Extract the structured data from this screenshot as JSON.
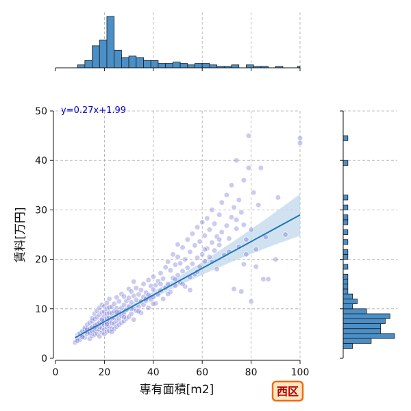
{
  "chart_data": {
    "type": "scatter",
    "title": "",
    "xlabel": "専有面積[m2]",
    "ylabel": "賃料[万円]",
    "xlim": [
      0,
      100
    ],
    "ylim": [
      0,
      50
    ],
    "xticks": [
      0,
      20,
      40,
      60,
      80,
      100
    ],
    "yticks": [
      0,
      10,
      20,
      30,
      40,
      50
    ],
    "grid": true,
    "regression": {
      "label": "y=0.27x+1.99",
      "slope": 0.27,
      "intercept": 1.99,
      "x_range": [
        8,
        100
      ]
    },
    "region_badge": "西区",
    "colors": {
      "points": "#6a6ad8",
      "line": "#1f77b4",
      "band": "#bcd4ea",
      "hist": "#4a8fc6",
      "equation": "#0000cc",
      "badge_border": "#f26a10",
      "badge_fill": "#fde7c2",
      "badge_text": "#b00000"
    },
    "points": [
      [
        8,
        3.2
      ],
      [
        9,
        4.1
      ],
      [
        10,
        3.8
      ],
      [
        10,
        5.0
      ],
      [
        11,
        4.6
      ],
      [
        11,
        5.5
      ],
      [
        12,
        4.2
      ],
      [
        12,
        5.8
      ],
      [
        12,
        6.2
      ],
      [
        13,
        4.9
      ],
      [
        13,
        5.3
      ],
      [
        13,
        6.8
      ],
      [
        14,
        3.9
      ],
      [
        14,
        5.1
      ],
      [
        14,
        6.0
      ],
      [
        14,
        7.2
      ],
      [
        15,
        4.5
      ],
      [
        15,
        5.4
      ],
      [
        15,
        6.3
      ],
      [
        15,
        7.5
      ],
      [
        15,
        8.1
      ],
      [
        16,
        4.8
      ],
      [
        16,
        5.6
      ],
      [
        16,
        6.6
      ],
      [
        16,
        7.9
      ],
      [
        16,
        9.0
      ],
      [
        17,
        5.0
      ],
      [
        17,
        5.9
      ],
      [
        17,
        6.9
      ],
      [
        17,
        8.3
      ],
      [
        17,
        9.6
      ],
      [
        18,
        4.4
      ],
      [
        18,
        5.7
      ],
      [
        18,
        6.4
      ],
      [
        18,
        7.3
      ],
      [
        18,
        8.8
      ],
      [
        18,
        10.2
      ],
      [
        19,
        5.2
      ],
      [
        19,
        6.1
      ],
      [
        19,
        7.0
      ],
      [
        19,
        8.0
      ],
      [
        19,
        9.3
      ],
      [
        19,
        10.8
      ],
      [
        20,
        4.9
      ],
      [
        20,
        5.8
      ],
      [
        20,
        6.7
      ],
      [
        20,
        7.6
      ],
      [
        20,
        8.5
      ],
      [
        20,
        9.4
      ],
      [
        20,
        10.5
      ],
      [
        21,
        5.4
      ],
      [
        21,
        6.3
      ],
      [
        21,
        7.2
      ],
      [
        21,
        8.1
      ],
      [
        21,
        9.0
      ],
      [
        21,
        10.0
      ],
      [
        21,
        11.2
      ],
      [
        22,
        5.6
      ],
      [
        22,
        6.5
      ],
      [
        22,
        7.4
      ],
      [
        22,
        8.3
      ],
      [
        22,
        9.2
      ],
      [
        22,
        10.3
      ],
      [
        22,
        12.0
      ],
      [
        23,
        6.0
      ],
      [
        23,
        7.1
      ],
      [
        23,
        8.0
      ],
      [
        23,
        9.1
      ],
      [
        23,
        10.4
      ],
      [
        24,
        5.9
      ],
      [
        24,
        7.0
      ],
      [
        24,
        8.2
      ],
      [
        24,
        9.5
      ],
      [
        24,
        11.0
      ],
      [
        25,
        6.4
      ],
      [
        25,
        7.5
      ],
      [
        25,
        8.7
      ],
      [
        25,
        10.1
      ],
      [
        25,
        12.3
      ],
      [
        26,
        6.8
      ],
      [
        26,
        8.0
      ],
      [
        26,
        9.3
      ],
      [
        26,
        11.5
      ],
      [
        27,
        7.2
      ],
      [
        27,
        8.6
      ],
      [
        27,
        10.2
      ],
      [
        27,
        13.0
      ],
      [
        28,
        7.5
      ],
      [
        28,
        9.0
      ],
      [
        28,
        10.8
      ],
      [
        28,
        12.5
      ],
      [
        29,
        8.0
      ],
      [
        29,
        9.8
      ],
      [
        29,
        11.6
      ],
      [
        30,
        8.4
      ],
      [
        30,
        10.5
      ],
      [
        30,
        12.2
      ],
      [
        30,
        14.0
      ],
      [
        31,
        9.0
      ],
      [
        31,
        11.3
      ],
      [
        31,
        13.5
      ],
      [
        32,
        7.8
      ],
      [
        32,
        10.0
      ],
      [
        32,
        12.6
      ],
      [
        32,
        15.5
      ],
      [
        33,
        9.6
      ],
      [
        33,
        11.8
      ],
      [
        33,
        14.2
      ],
      [
        34,
        10.4
      ],
      [
        34,
        12.9
      ],
      [
        35,
        9.2
      ],
      [
        35,
        11.5
      ],
      [
        35,
        13.8
      ],
      [
        36,
        10.8
      ],
      [
        36,
        12.4
      ],
      [
        36,
        15.0
      ],
      [
        37,
        11.6
      ],
      [
        37,
        13.3
      ],
      [
        38,
        10.2
      ],
      [
        38,
        12.8
      ],
      [
        38,
        15.8
      ],
      [
        39,
        11.9
      ],
      [
        39,
        14.6
      ],
      [
        40,
        12.4
      ],
      [
        40,
        13.9
      ],
      [
        40,
        16.5
      ],
      [
        41,
        11.1
      ],
      [
        41,
        14.8
      ],
      [
        42,
        12.9
      ],
      [
        42,
        15.6
      ],
      [
        43,
        13.7
      ],
      [
        43,
        17.2
      ],
      [
        44,
        12.0
      ],
      [
        44,
        16.1
      ],
      [
        45,
        14.3
      ],
      [
        45,
        18.4
      ],
      [
        46,
        15.0
      ],
      [
        46,
        19.5
      ],
      [
        47,
        13.4
      ],
      [
        47,
        17.8
      ],
      [
        48,
        16.2
      ],
      [
        48,
        21.0
      ],
      [
        49,
        14.7
      ],
      [
        49,
        18.9
      ],
      [
        50,
        16.8
      ],
      [
        50,
        20.5
      ],
      [
        50,
        23.0
      ],
      [
        51,
        15.3
      ],
      [
        51,
        19.2
      ],
      [
        52,
        17.6
      ],
      [
        52,
        22.4
      ],
      [
        53,
        14.5
      ],
      [
        53,
        20.0
      ],
      [
        54,
        18.3
      ],
      [
        54,
        24.0
      ],
      [
        55,
        16.4
      ],
      [
        55,
        21.5
      ],
      [
        56,
        19.1
      ],
      [
        56,
        25.2
      ],
      [
        57,
        17.0
      ],
      [
        57,
        22.8
      ],
      [
        58,
        20.3
      ],
      [
        58,
        26.5
      ],
      [
        59,
        18.5
      ],
      [
        59,
        23.6
      ],
      [
        60,
        21.0
      ],
      [
        60,
        27.5
      ],
      [
        61,
        19.6
      ],
      [
        61,
        24.8
      ],
      [
        62,
        22.2
      ],
      [
        62,
        28.3
      ],
      [
        63,
        20.5
      ],
      [
        63,
        26.0
      ],
      [
        64,
        23.4
      ],
      [
        64,
        30.0
      ],
      [
        65,
        21.8
      ],
      [
        65,
        27.2
      ],
      [
        66,
        18.0
      ],
      [
        66,
        24.6
      ],
      [
        67,
        22.9
      ],
      [
        67,
        29.0
      ],
      [
        68,
        25.5
      ],
      [
        68,
        31.5
      ],
      [
        69,
        20.9
      ],
      [
        70,
        26.8
      ],
      [
        70,
        33.0
      ],
      [
        71,
        24.2
      ],
      [
        72,
        28.5
      ],
      [
        72,
        35.0
      ],
      [
        73,
        14.0
      ],
      [
        73,
        30.5
      ],
      [
        74,
        26.2
      ],
      [
        74,
        40.0
      ],
      [
        75,
        22.5
      ],
      [
        75,
        32.0
      ],
      [
        76,
        13.5
      ],
      [
        76,
        29.5
      ],
      [
        77,
        27.0
      ],
      [
        77,
        36.0
      ],
      [
        78,
        24.0
      ],
      [
        78,
        21.0
      ],
      [
        79,
        38.5
      ],
      [
        79,
        45.0
      ],
      [
        80,
        11.5
      ],
      [
        80,
        26.0
      ],
      [
        81,
        33.5
      ],
      [
        82,
        18.5
      ],
      [
        83,
        31.0
      ],
      [
        84,
        38.5
      ],
      [
        85,
        16.0
      ],
      [
        86,
        24.5
      ],
      [
        87,
        16.0
      ],
      [
        90,
        20.0
      ],
      [
        91,
        32.5
      ],
      [
        94,
        25.0
      ],
      [
        100,
        43.5
      ],
      [
        100,
        44.5
      ],
      [
        9,
        3.5
      ],
      [
        11,
        4.3
      ],
      [
        13,
        5.8
      ],
      [
        16,
        6.2
      ],
      [
        19,
        7.8
      ],
      [
        21,
        6.9
      ],
      [
        23,
        5.3
      ],
      [
        25,
        9.4
      ],
      [
        28,
        8.3
      ],
      [
        31,
        10.0
      ],
      [
        34,
        9.5
      ],
      [
        37,
        12.0
      ],
      [
        40,
        11.0
      ],
      [
        43,
        15.0
      ],
      [
        46,
        13.0
      ],
      [
        49,
        16.0
      ],
      [
        52,
        15.0
      ],
      [
        55,
        13.8
      ],
      [
        58,
        17.5
      ],
      [
        61,
        22.0
      ],
      [
        64,
        19.5
      ],
      [
        67,
        24.0
      ],
      [
        71,
        21.5
      ],
      [
        74,
        28.0
      ],
      [
        77,
        19.0
      ],
      [
        82,
        22.0
      ]
    ],
    "top_hist": {
      "bin_edges": [
        0,
        3,
        6,
        9,
        12,
        15,
        18,
        21,
        24,
        27,
        30,
        33,
        36,
        39,
        42,
        45,
        48,
        51,
        54,
        57,
        60,
        63,
        66,
        69,
        72,
        75,
        78,
        81,
        84,
        87,
        90,
        93,
        96,
        99,
        102
      ],
      "counts": [
        0,
        0,
        0,
        2,
        5,
        15,
        19,
        35,
        12,
        7,
        8,
        7,
        5,
        5,
        3,
        3,
        4,
        3,
        2,
        3,
        3,
        2,
        1,
        1,
        2,
        0,
        2,
        1,
        1,
        0,
        1,
        0,
        0,
        1
      ]
    },
    "right_hist": {
      "bin_edges": [
        0,
        1,
        2,
        3,
        4,
        5,
        6,
        7,
        8,
        9,
        10,
        11,
        12,
        13,
        14,
        15,
        16,
        17,
        18,
        19,
        20,
        21,
        22,
        23,
        24,
        25,
        26,
        27,
        28,
        29,
        30,
        31,
        32,
        33,
        34,
        35,
        36,
        37,
        38,
        39,
        40,
        41,
        42,
        43,
        44,
        45
      ],
      "counts": [
        0,
        0,
        2,
        6,
        11,
        8,
        8,
        9,
        10,
        5,
        2,
        3,
        2,
        1,
        1,
        1,
        1,
        0,
        1,
        0,
        1,
        1,
        0,
        1,
        0,
        1,
        0,
        1,
        1,
        0,
        1,
        0,
        1,
        0,
        0,
        0,
        0,
        0,
        0,
        1,
        0,
        0,
        0,
        0,
        1
      ]
    }
  }
}
